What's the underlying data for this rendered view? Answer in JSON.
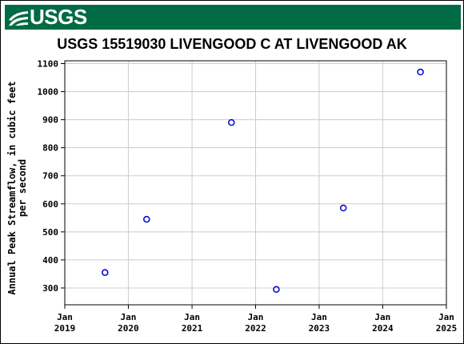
{
  "brand": {
    "name": "USGS",
    "banner_color": "#006b44"
  },
  "chart_data": {
    "type": "scatter",
    "title": "USGS 15519030 LIVENGOOD C AT LIVENGOOD AK",
    "ylabel_lines": [
      "Annual Peak Streamflow, in cubic feet",
      "per second"
    ],
    "xlabel": "",
    "x_ticks": [
      {
        "date": "2019-01-01",
        "line1": "Jan",
        "line2": "2019"
      },
      {
        "date": "2020-01-01",
        "line1": "Jan",
        "line2": "2020"
      },
      {
        "date": "2021-01-01",
        "line1": "Jan",
        "line2": "2021"
      },
      {
        "date": "2022-01-01",
        "line1": "Jan",
        "line2": "2022"
      },
      {
        "date": "2023-01-01",
        "line1": "Jan",
        "line2": "2023"
      },
      {
        "date": "2024-01-01",
        "line1": "Jan",
        "line2": "2024"
      },
      {
        "date": "2025-01-01",
        "line1": "Jan",
        "line2": "2025"
      }
    ],
    "xlim": [
      "2019-01-01",
      "2025-01-01"
    ],
    "y_ticks": [
      300,
      400,
      500,
      600,
      700,
      800,
      900,
      1000,
      1100
    ],
    "ylim": [
      240,
      1110
    ],
    "grid": true,
    "marker_color": "#0000cc",
    "points": [
      {
        "date": "2019-08-20",
        "value": 355
      },
      {
        "date": "2020-04-15",
        "value": 545
      },
      {
        "date": "2021-08-15",
        "value": 890
      },
      {
        "date": "2022-04-30",
        "value": 295
      },
      {
        "date": "2023-05-20",
        "value": 585
      },
      {
        "date": "2024-08-05",
        "value": 1070
      }
    ]
  }
}
